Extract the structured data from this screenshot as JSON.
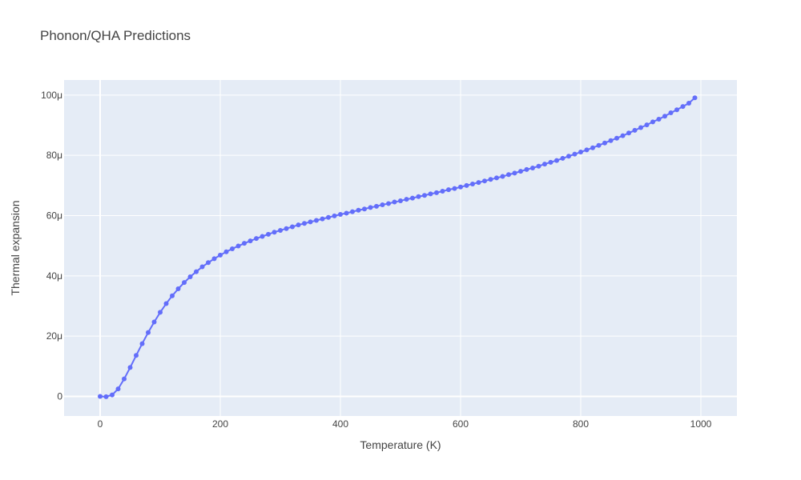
{
  "chart_data": {
    "type": "line",
    "title": "Phonon/QHA Predictions",
    "xlabel": "Temperature (K)",
    "ylabel": "Thermal expansion",
    "xlim": [
      -60,
      1060
    ],
    "ylim": [
      -6.5e-06,
      0.000105
    ],
    "x_ticks": [
      0,
      200,
      400,
      600,
      800,
      1000
    ],
    "x_tick_labels": [
      "0",
      "200",
      "400",
      "600",
      "800",
      "1000"
    ],
    "y_ticks": [
      0,
      2e-05,
      4e-05,
      6e-05,
      8e-05,
      0.0001
    ],
    "y_tick_labels": [
      "0",
      "20μ",
      "40μ",
      "60μ",
      "80μ",
      "100μ"
    ],
    "grid": true,
    "colors": {
      "plot_bg": "#e5ecf6",
      "grid": "#ffffff",
      "series": "#636efa",
      "text": "#444444"
    },
    "series": [
      {
        "x": [
          0,
          10,
          20,
          30,
          40,
          50,
          60,
          70,
          80,
          90,
          100,
          110,
          120,
          130,
          140,
          150,
          160,
          170,
          180,
          190,
          200,
          210,
          220,
          230,
          240,
          250,
          260,
          270,
          280,
          290,
          300,
          310,
          320,
          330,
          340,
          350,
          360,
          370,
          380,
          390,
          400,
          410,
          420,
          430,
          440,
          450,
          460,
          470,
          480,
          490,
          500,
          510,
          520,
          530,
          540,
          550,
          560,
          570,
          580,
          590,
          600,
          610,
          620,
          630,
          640,
          650,
          660,
          670,
          680,
          690,
          700,
          710,
          720,
          730,
          740,
          750,
          760,
          770,
          780,
          790,
          800,
          810,
          820,
          830,
          840,
          850,
          860,
          870,
          880,
          890,
          900,
          910,
          920,
          930,
          940,
          950,
          960,
          970,
          980,
          990
        ],
        "values": [
          0.0,
          -1e-07,
          5e-07,
          2.5e-06,
          5.8e-06,
          9.6e-06,
          1.36e-05,
          1.75e-05,
          2.12e-05,
          2.47e-05,
          2.79e-05,
          3.08e-05,
          3.34e-05,
          3.57e-05,
          3.78e-05,
          3.97e-05,
          4.14e-05,
          4.3e-05,
          4.44e-05,
          4.57e-05,
          4.69e-05,
          4.8e-05,
          4.9e-05,
          4.99e-05,
          5.08e-05,
          5.16e-05,
          5.24e-05,
          5.31e-05,
          5.38e-05,
          5.45e-05,
          5.51e-05,
          5.57e-05,
          5.63e-05,
          5.69e-05,
          5.74e-05,
          5.79e-05,
          5.84e-05,
          5.89e-05,
          5.94e-05,
          5.99e-05,
          6.04e-05,
          6.08e-05,
          6.13e-05,
          6.18e-05,
          6.22e-05,
          6.27e-05,
          6.31e-05,
          6.36e-05,
          6.4e-05,
          6.45e-05,
          6.49e-05,
          6.54e-05,
          6.58e-05,
          6.63e-05,
          6.67e-05,
          6.72e-05,
          6.76e-05,
          6.81e-05,
          6.86e-05,
          6.9e-05,
          6.95e-05,
          7e-05,
          7.05e-05,
          7.1e-05,
          7.15e-05,
          7.2e-05,
          7.25e-05,
          7.3e-05,
          7.36e-05,
          7.41e-05,
          7.47e-05,
          7.53e-05,
          7.58e-05,
          7.64e-05,
          7.71e-05,
          7.77e-05,
          7.83e-05,
          7.9e-05,
          7.97e-05,
          8.04e-05,
          8.11e-05,
          8.18e-05,
          8.25e-05,
          8.33e-05,
          8.41e-05,
          8.49e-05,
          8.57e-05,
          8.65e-05,
          8.74e-05,
          8.83e-05,
          8.92e-05,
          9.01e-05,
          9.11e-05,
          9.2e-05,
          9.3e-05,
          9.41e-05,
          9.51e-05,
          9.62e-05,
          9.73e-05,
          9.91e-05
        ]
      }
    ]
  }
}
